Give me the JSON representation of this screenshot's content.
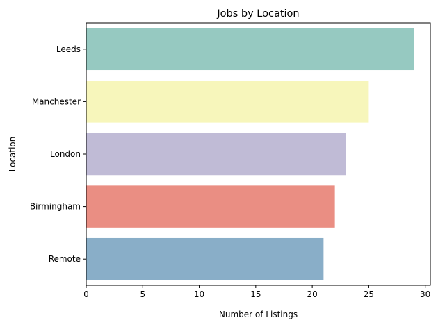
{
  "chart_data": {
    "type": "bar",
    "orientation": "horizontal",
    "title": "Jobs by Location",
    "xlabel": "Number of Listings",
    "ylabel": "Location",
    "categories": [
      "Leeds",
      "Manchester",
      "London",
      "Birmingham",
      "Remote"
    ],
    "values": [
      29,
      25,
      23,
      22,
      21
    ],
    "colors": [
      "#96c9c1",
      "#f7f6bb",
      "#c0bbd6",
      "#ea8e83",
      "#89aec8"
    ],
    "xlim": [
      0,
      30.45
    ],
    "xticks": [
      0,
      5,
      10,
      15,
      20,
      25,
      30
    ],
    "grid": false,
    "legend": "none"
  }
}
